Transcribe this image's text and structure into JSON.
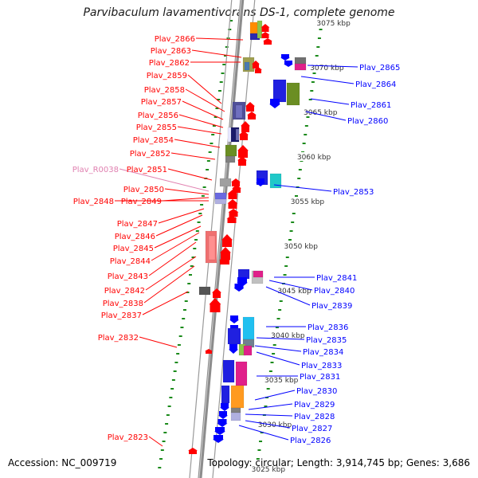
{
  "title": "Parvibaculum lavamentivorans DS-1, complete genome",
  "accession": "Accession: NC_009719",
  "stats": "Topology: circular; Length: 3,914,745 bp; Genes: 3,686",
  "colors": {
    "forward": "#ff0000",
    "reverse": "#0000ff",
    "rna": "#e080b0"
  },
  "chart_data": {
    "type": "genome-map",
    "scale_labels": [
      "3075 kbp",
      "3070 kbp",
      "3065 kbp",
      "3060 kbp",
      "3055 kbp",
      "3050 kbp",
      "3045 kbp",
      "3040 kbp",
      "3035 kbp",
      "3030 kbp",
      "3025 kbp"
    ],
    "left_labels": [
      "Plav_2866",
      "Plav_2863",
      "Plav_2862",
      "Plav_2859",
      "Plav_2858",
      "Plav_2857",
      "Plav_2856",
      "Plav_2855",
      "Plav_2854",
      "Plav_2852",
      "Plav_R0038",
      "Plav_2851",
      "Plav_2850",
      "Plav_2849",
      "Plav_2848",
      "Plav_2847",
      "Plav_2846",
      "Plav_2845",
      "Plav_2844",
      "Plav_2843",
      "Plav_2842",
      "Plav_2838",
      "Plav_2837",
      "Plav_2832",
      "Plav_2823"
    ],
    "right_labels": [
      "Plav_2865",
      "Plav_2864",
      "Plav_2861",
      "Plav_2860",
      "Plav_2853",
      "Plav_2841",
      "Plav_2840",
      "Plav_2839",
      "Plav_2836",
      "Plav_2835",
      "Plav_2834",
      "Plav_2833",
      "Plav_2831",
      "Plav_2830",
      "Plav_2829",
      "Plav_2828",
      "Plav_2827",
      "Plav_2826"
    ]
  }
}
